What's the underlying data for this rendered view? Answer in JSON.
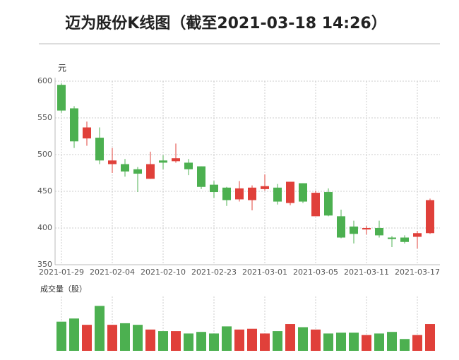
{
  "chart_data": {
    "type": "candlestick",
    "title": "迈为股份K线图（截至2021-03-18 14:26）",
    "y_label": "元",
    "categories": [
      "2021-01-29",
      null,
      null,
      null,
      "2021-02-04",
      null,
      null,
      null,
      "2021-02-10",
      null,
      null,
      null,
      "2021-02-23",
      null,
      null,
      null,
      "2021-03-01",
      null,
      null,
      null,
      "2021-03-05",
      null,
      null,
      null,
      "2021-03-11",
      null,
      null,
      null,
      "2021-03-17",
      null
    ],
    "open": [
      595,
      563,
      522,
      523,
      487,
      487,
      480,
      467,
      492,
      491,
      489,
      484,
      459,
      455,
      439,
      438,
      453,
      455,
      434,
      461,
      416,
      449,
      416,
      402,
      398,
      400,
      387,
      387,
      388,
      393
    ],
    "high": [
      597,
      566,
      545,
      537,
      509,
      494,
      483,
      504,
      499,
      515,
      494,
      484,
      464,
      456,
      464,
      458,
      473,
      460,
      463,
      461,
      451,
      454,
      425,
      410,
      403,
      410,
      389,
      390,
      396,
      440
    ],
    "low": [
      557,
      509,
      512,
      487,
      475,
      470,
      449,
      467,
      480,
      489,
      472,
      453,
      441,
      430,
      436,
      424,
      451,
      432,
      431,
      434,
      416,
      416,
      386,
      379,
      391,
      387,
      374,
      379,
      372,
      392
    ],
    "close": [
      560,
      518,
      537,
      492,
      492,
      477,
      474,
      487,
      489,
      495,
      480,
      456,
      449,
      438,
      454,
      455,
      457,
      436,
      463,
      436,
      448,
      417,
      387,
      392,
      400,
      390,
      385,
      381,
      393,
      438
    ],
    "up_color": "#e0403a",
    "down_color": "#4cb050",
    "ylim": [
      350,
      600
    ],
    "yticks": [
      350,
      400,
      450,
      500,
      550,
      600
    ],
    "grid": true,
    "volume": {
      "title": "成交量（股）",
      "values": [
        37,
        41,
        33,
        57,
        33,
        35,
        33,
        27,
        25,
        25,
        22,
        24,
        22,
        31,
        27,
        28,
        22,
        25,
        34,
        30,
        27,
        22,
        23,
        23,
        20,
        22,
        24,
        15,
        20,
        34
      ],
      "ylim": [
        0,
        60
      ]
    }
  }
}
